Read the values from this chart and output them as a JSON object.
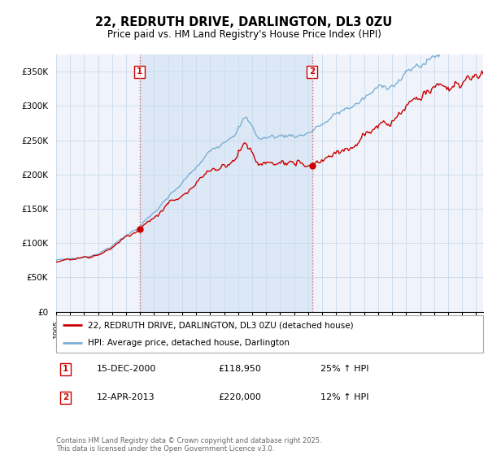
{
  "title": "22, REDRUTH DRIVE, DARLINGTON, DL3 0ZU",
  "subtitle": "Price paid vs. HM Land Registry's House Price Index (HPI)",
  "legend_entry1": "22, REDRUTH DRIVE, DARLINGTON, DL3 0ZU (detached house)",
  "legend_entry2": "HPI: Average price, detached house, Darlington",
  "annotation1_date": "15-DEC-2000",
  "annotation1_price": "£118,950",
  "annotation1_hpi": "25% ↑ HPI",
  "annotation2_date": "12-APR-2013",
  "annotation2_price": "£220,000",
  "annotation2_hpi": "12% ↑ HPI",
  "footer": "Contains HM Land Registry data © Crown copyright and database right 2025.\nThis data is licensed under the Open Government Licence v3.0.",
  "line1_color": "#cc0000",
  "line2_color": "#7bafd4",
  "shade_color": "#dce8f5",
  "annotation_color": "#cc0000",
  "background_color": "#ffffff",
  "plot_bg_color": "#f0f4fa",
  "grid_color": "#ccddee",
  "ylim": [
    0,
    375000
  ],
  "yticks": [
    0,
    50000,
    100000,
    150000,
    200000,
    250000,
    300000,
    350000
  ],
  "ytick_labels": [
    "£0",
    "£50K",
    "£100K",
    "£150K",
    "£200K",
    "£250K",
    "£300K",
    "£350K"
  ],
  "marker1_x": 2000.958,
  "marker1_y": 118950,
  "marker2_x": 2013.278,
  "marker2_y": 220000,
  "xmin": 1995.0,
  "xmax": 2025.5
}
